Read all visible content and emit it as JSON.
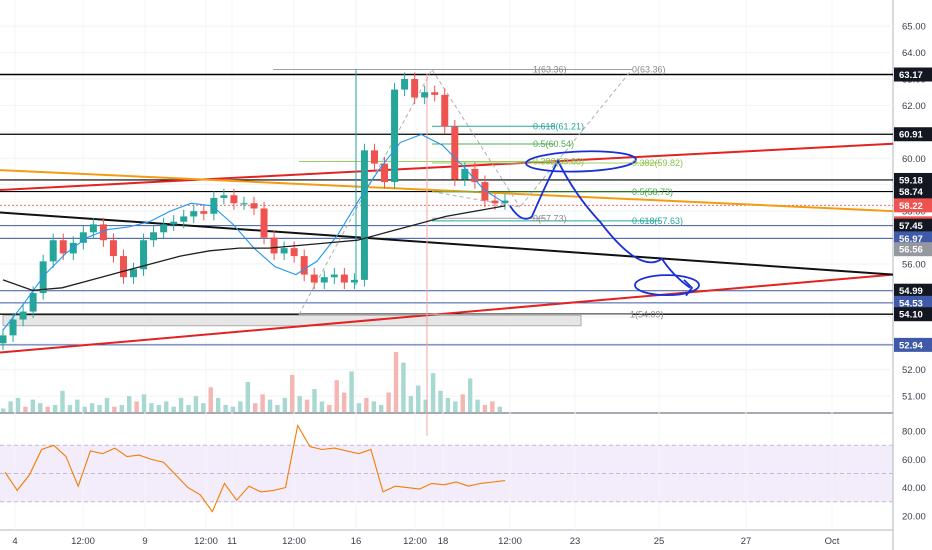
{
  "chart_data": {
    "type": "candlestick",
    "x_ticks": [
      "4",
      "12:00",
      "9",
      "12:00",
      "11",
      "12:00",
      "16",
      "12:00",
      "18",
      "12:00",
      "23",
      "25",
      "27",
      "Oct"
    ],
    "price_ticks": [
      "65.00",
      "64.00",
      "63.00",
      "62.00",
      "61.00",
      "60.00",
      "59.00",
      "58.00",
      "57.00",
      "56.00",
      "55.00",
      "54.00",
      "53.00",
      "52.00",
      "51.00"
    ],
    "rsi_ticks": [
      "80.00",
      "60.00",
      "40.00",
      "20.00"
    ],
    "price_tags": [
      {
        "label": "63.17",
        "style": "dark"
      },
      {
        "label": "60.91",
        "style": "dark"
      },
      {
        "label": "59.18",
        "style": "dark"
      },
      {
        "label": "58.74",
        "style": "dark"
      },
      {
        "label": "58.22",
        "style": "red"
      },
      {
        "label": "23:24",
        "style": "red"
      },
      {
        "label": "57.45",
        "style": "dark"
      },
      {
        "label": "56.97",
        "style": "blue"
      },
      {
        "label": "56.56",
        "style": "grey"
      },
      {
        "label": "54.99",
        "style": "dark"
      },
      {
        "label": "54.53",
        "style": "blue"
      },
      {
        "label": "54.10",
        "style": "dark"
      },
      {
        "label": "52.94",
        "style": "blue"
      }
    ],
    "fib_labels": [
      {
        "text": "1(63.36)",
        "color": "#888888"
      },
      {
        "text": "0(63.36)",
        "color": "#888888"
      },
      {
        "text": "0.618(61.21)",
        "color": "#26a69a"
      },
      {
        "text": "0.5(60.54)",
        "color": "#4caf50"
      },
      {
        "text": "0.382(59.88)",
        "color": "#8bc34a"
      },
      {
        "text": "0.382(59.82)",
        "color": "#8bc34a"
      },
      {
        "text": "0.5(58.73)",
        "color": "#4caf50"
      },
      {
        "text": "0(57.73)",
        "color": "#888888"
      },
      {
        "text": "0.618(57.63)",
        "color": "#26a69a"
      },
      {
        "text": "1(54.09)",
        "color": "#888888"
      }
    ],
    "price_range": [
      50.4,
      65.8
    ],
    "rsi_range": [
      10,
      90
    ],
    "close_series": [
      53.3,
      53.9,
      54.2,
      54.9,
      56.1,
      56.9,
      56.4,
      56.8,
      57.2,
      57.5,
      56.9,
      56.3,
      55.5,
      55.8,
      56.9,
      57.2,
      57.5,
      57.6,
      57.8,
      58.0,
      57.9,
      58.5,
      58.6,
      58.3,
      58.3,
      58.1,
      57.0,
      56.4,
      56.6,
      56.3,
      55.6,
      55.3,
      55.5,
      55.6,
      55.3,
      55.4,
      60.3,
      59.8,
      59.1,
      62.6,
      63.0,
      62.3,
      62.5,
      62.4,
      61.2,
      59.2,
      59.6,
      59.1,
      58.4,
      58.3,
      58.4
    ],
    "ma_series": [
      {
        "name": "",
        "color": "#2196f3",
        "values": [
          53.5,
          54.5,
          55.6,
          56.4,
          57.0,
          57.3,
          57.4,
          57.6,
          58.0,
          58.3,
          58.2,
          57.5,
          56.6,
          55.9,
          55.6,
          56.1,
          57.1,
          58.4,
          59.6,
          60.6,
          60.9,
          60.5,
          59.7,
          58.8,
          58.3
        ]
      },
      {
        "name": "",
        "color": "#1f1f1f",
        "values": [
          55.4,
          55.0,
          55.1,
          55.4,
          55.7,
          56.0,
          56.3,
          56.5,
          56.6,
          56.6,
          56.7,
          56.8,
          56.9,
          57.2,
          57.5,
          57.8,
          58.0,
          58.2
        ]
      }
    ],
    "rsi_series": [
      51,
      38,
      49,
      67,
      70,
      62,
      41,
      66,
      64,
      68,
      62,
      63,
      60,
      58,
      49,
      40,
      35,
      23,
      43,
      31,
      41,
      37,
      38,
      40,
      84,
      69,
      67,
      68,
      66,
      64,
      67,
      37,
      41,
      40,
      39,
      43,
      42,
      44,
      41,
      43,
      44,
      45
    ],
    "volume": [
      2,
      6,
      8,
      3,
      7,
      5,
      3,
      4,
      12,
      4,
      7,
      3,
      5,
      4,
      8,
      3,
      4,
      9,
      6,
      10,
      5,
      4,
      6,
      3,
      8,
      4,
      9,
      5,
      14,
      8,
      4,
      3,
      6,
      17,
      5,
      10,
      7,
      4,
      8,
      21,
      9,
      7,
      13,
      6,
      4,
      18,
      11,
      23,
      5,
      8,
      6,
      4,
      11,
      34,
      28,
      9,
      15,
      7,
      22,
      12,
      8,
      6,
      10,
      19,
      7,
      4,
      6,
      3
    ],
    "rsi_band": [
      30,
      70
    ]
  }
}
